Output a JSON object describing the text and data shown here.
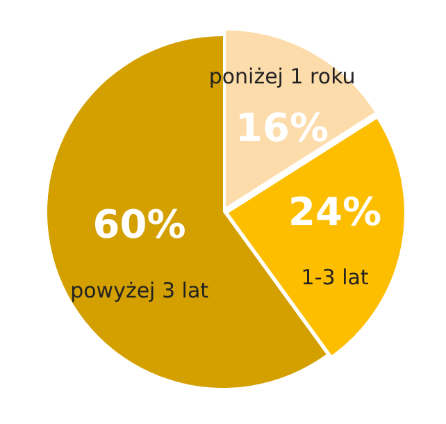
{
  "chart_data": {
    "type": "pie",
    "categories": [
      "poniżej 1 roku",
      "1-3 lat",
      "powyżej 3 lat"
    ],
    "values": [
      16,
      24,
      60
    ],
    "colors": [
      "#fddcab",
      "#fdbe00",
      "#d3a000"
    ],
    "value_labels": [
      "16%",
      "24%",
      "60%"
    ],
    "legend": false
  }
}
